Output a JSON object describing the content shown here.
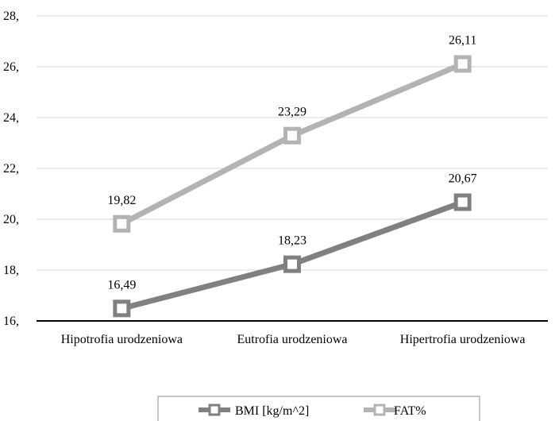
{
  "chart_data": {
    "type": "line",
    "categories": [
      "Hipotrofia urodzeniowa",
      "Eutrofia urodzeniowa",
      "Hipertrofia urodzeniowa"
    ],
    "series": [
      {
        "name": "BMI [kg/m^2]",
        "values": [
          16.49,
          18.23,
          20.67
        ],
        "labels": [
          "16,49",
          "18,23",
          "20,67"
        ],
        "color": "#808080"
      },
      {
        "name": "FAT%",
        "values": [
          19.82,
          23.29,
          26.11
        ],
        "labels": [
          "19,82",
          "23,29",
          "26,11"
        ],
        "color": "#b3b3b3"
      }
    ],
    "ylim": [
      16,
      28
    ],
    "yticks": [
      16,
      18,
      20,
      22,
      24,
      26,
      28
    ],
    "ytick_labels": [
      "16,",
      "18,",
      "20,",
      "22,",
      "24,",
      "26,",
      "28,"
    ],
    "grid": true,
    "legend": "bottom"
  }
}
